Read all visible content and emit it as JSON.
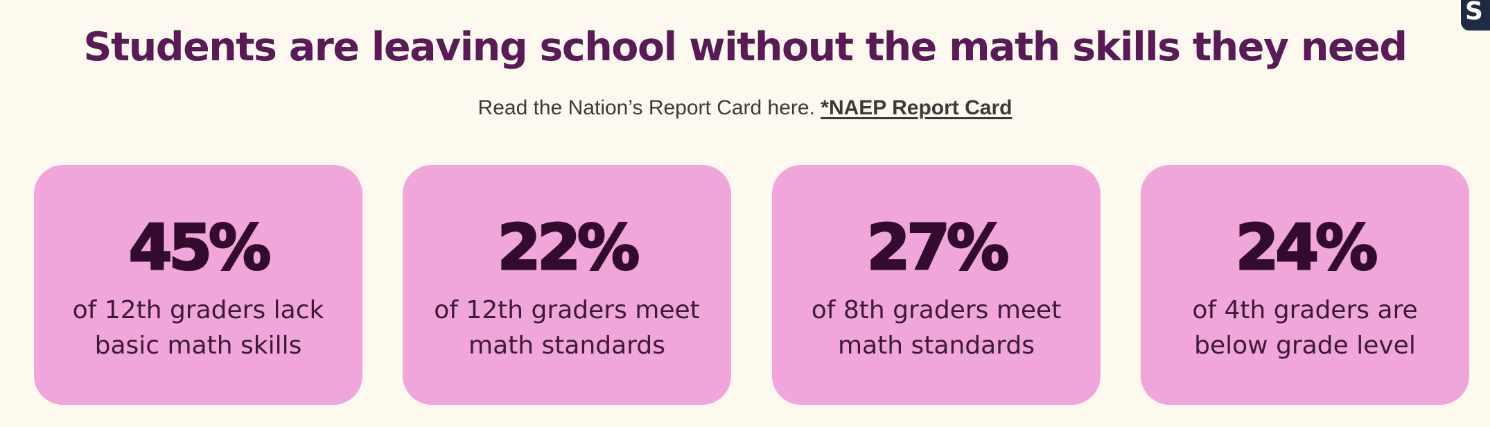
{
  "header": {
    "title": "Students are leaving school without the math skills they need",
    "subtitle_text": "Read the Nation’s Report Card here.",
    "report_link_label": "*NAEP Report Card"
  },
  "corner_badge": {
    "label": "S"
  },
  "stats": [
    {
      "value": "45%",
      "description": "of 12th graders lack basic math skills"
    },
    {
      "value": "22%",
      "description": "of 12th graders meet math standards"
    },
    {
      "value": "27%",
      "description": "of 8th graders meet math standards"
    },
    {
      "value": "24%",
      "description": "of 4th graders are below grade level"
    }
  ],
  "colors": {
    "background": "#fdf9ee",
    "title": "#5a1a55",
    "card": "#f0a5db",
    "stat_value": "#320b2e",
    "badge": "#1f2a44"
  }
}
